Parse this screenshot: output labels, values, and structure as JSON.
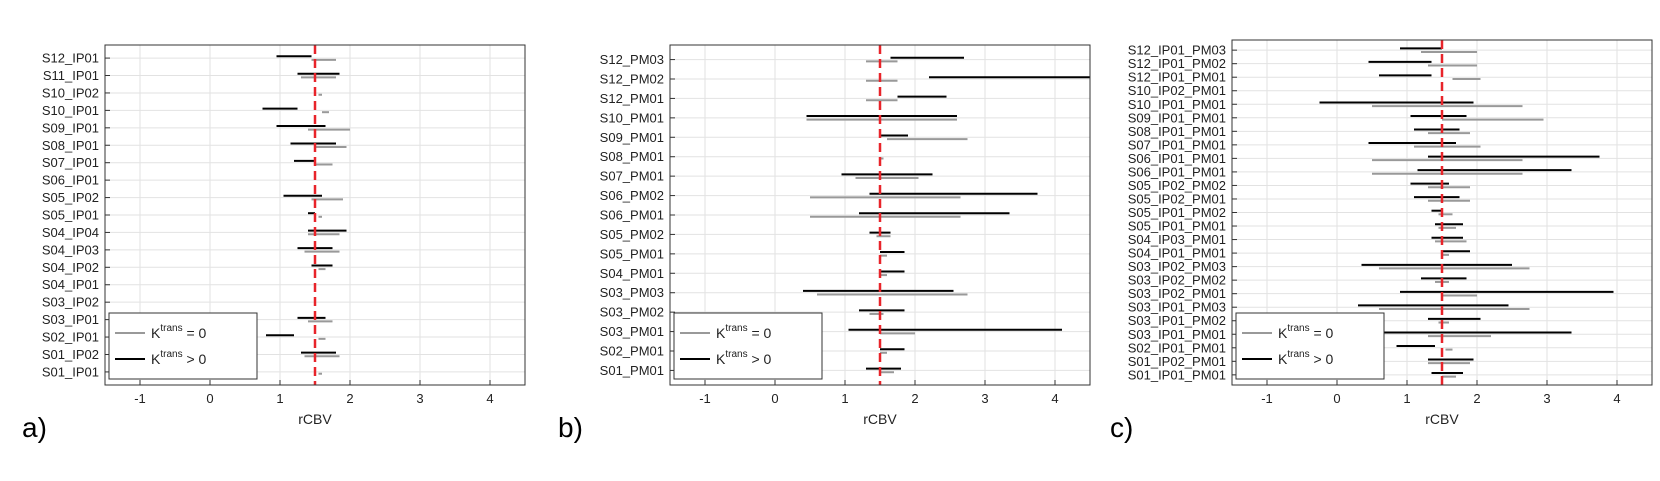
{
  "chart_data": [
    {
      "type": "interval",
      "panel_label": "a)",
      "xlabel": "rCBV",
      "xlim": [
        -1.5,
        4.5
      ],
      "xticks": [
        -1,
        0,
        1,
        2,
        3,
        4
      ],
      "reference_line_x": 1.5,
      "grid": true,
      "legend": {
        "placement": "bottom-left",
        "entries": [
          {
            "series": "ktrans_zero",
            "base": "K",
            "sup": "trans",
            "rest": " = 0",
            "color": "#999999"
          },
          {
            "series": "ktrans_pos",
            "base": "K",
            "sup": "trans",
            "rest": " > 0",
            "color": "#000000"
          }
        ]
      },
      "rows": [
        {
          "label": "S12_IP01",
          "ktrans_zero": [
            1.45,
            1.8
          ],
          "ktrans_pos": [
            0.95,
            1.45
          ]
        },
        {
          "label": "S11_IP01",
          "ktrans_zero": [
            1.3,
            1.8
          ],
          "ktrans_pos": [
            1.25,
            1.85
          ]
        },
        {
          "label": "S10_IP02",
          "ktrans_zero": [
            1.55,
            1.6
          ],
          "ktrans_pos": null
        },
        {
          "label": "S10_IP01",
          "ktrans_zero": [
            1.6,
            1.7
          ],
          "ktrans_pos": [
            0.75,
            1.25
          ]
        },
        {
          "label": "S09_IP01",
          "ktrans_zero": [
            1.4,
            2.0
          ],
          "ktrans_pos": [
            0.95,
            1.65
          ]
        },
        {
          "label": "S08_IP01",
          "ktrans_zero": [
            1.5,
            1.95
          ],
          "ktrans_pos": [
            1.15,
            1.8
          ]
        },
        {
          "label": "S07_IP01",
          "ktrans_zero": [
            1.5,
            1.75
          ],
          "ktrans_pos": [
            1.2,
            1.5
          ]
        },
        {
          "label": "S06_IP01",
          "ktrans_zero": null,
          "ktrans_pos": null
        },
        {
          "label": "S05_IP02",
          "ktrans_zero": [
            1.45,
            1.9
          ],
          "ktrans_pos": [
            1.05,
            1.6
          ]
        },
        {
          "label": "S05_IP01",
          "ktrans_zero": [
            1.55,
            1.6
          ],
          "ktrans_pos": [
            1.4,
            1.5
          ]
        },
        {
          "label": "S04_IP04",
          "ktrans_zero": [
            1.4,
            1.85
          ],
          "ktrans_pos": [
            1.4,
            1.95
          ]
        },
        {
          "label": "S04_IP03",
          "ktrans_zero": [
            1.35,
            1.85
          ],
          "ktrans_pos": [
            1.25,
            1.75
          ]
        },
        {
          "label": "S04_IP02",
          "ktrans_zero": [
            1.55,
            1.65
          ],
          "ktrans_pos": [
            1.45,
            1.75
          ]
        },
        {
          "label": "S04_IP01",
          "ktrans_zero": null,
          "ktrans_pos": null
        },
        {
          "label": "S03_IP02",
          "ktrans_zero": null,
          "ktrans_pos": null
        },
        {
          "label": "S03_IP01",
          "ktrans_zero": [
            1.4,
            1.75
          ],
          "ktrans_pos": [
            1.25,
            1.65
          ]
        },
        {
          "label": "S02_IP01",
          "ktrans_zero": [
            1.55,
            1.65
          ],
          "ktrans_pos": [
            0.8,
            1.2
          ]
        },
        {
          "label": "S01_IP02",
          "ktrans_zero": [
            1.35,
            1.85
          ],
          "ktrans_pos": [
            1.3,
            1.8
          ]
        },
        {
          "label": "S01_IP01",
          "ktrans_zero": [
            1.55,
            1.6
          ],
          "ktrans_pos": null
        }
      ]
    },
    {
      "type": "interval",
      "panel_label": "b)",
      "xlabel": "rCBV",
      "xlim": [
        -1.5,
        4.5
      ],
      "xticks": [
        -1,
        0,
        1,
        2,
        3,
        4
      ],
      "reference_line_x": 1.5,
      "grid": true,
      "legend": {
        "placement": "bottom-left",
        "entries": [
          {
            "series": "ktrans_zero",
            "base": "K",
            "sup": "trans",
            "rest": " = 0",
            "color": "#999999"
          },
          {
            "series": "ktrans_pos",
            "base": "K",
            "sup": "trans",
            "rest": " > 0",
            "color": "#000000"
          }
        ]
      },
      "rows": [
        {
          "label": "S12_PM03",
          "ktrans_zero": [
            1.3,
            1.75
          ],
          "ktrans_pos": [
            1.65,
            2.7
          ]
        },
        {
          "label": "S12_PM02",
          "ktrans_zero": [
            1.3,
            1.75
          ],
          "ktrans_pos": [
            2.2,
            4.5
          ]
        },
        {
          "label": "S12_PM01",
          "ktrans_zero": [
            1.3,
            1.75
          ],
          "ktrans_pos": [
            1.75,
            2.45
          ]
        },
        {
          "label": "S10_PM01",
          "ktrans_zero": [
            0.45,
            2.6
          ],
          "ktrans_pos": [
            0.45,
            2.6
          ]
        },
        {
          "label": "S09_PM01",
          "ktrans_zero": [
            1.6,
            2.75
          ],
          "ktrans_pos": [
            1.5,
            1.9
          ]
        },
        {
          "label": "S08_PM01",
          "ktrans_zero": [
            1.5,
            1.55
          ],
          "ktrans_pos": null
        },
        {
          "label": "S07_PM01",
          "ktrans_zero": [
            1.15,
            2.05
          ],
          "ktrans_pos": [
            0.95,
            2.25
          ]
        },
        {
          "label": "S06_PM02",
          "ktrans_zero": [
            0.5,
            2.65
          ],
          "ktrans_pos": [
            1.35,
            3.75
          ]
        },
        {
          "label": "S06_PM01",
          "ktrans_zero": [
            0.5,
            2.65
          ],
          "ktrans_pos": [
            1.2,
            3.35
          ]
        },
        {
          "label": "S05_PM02",
          "ktrans_zero": [
            1.45,
            1.65
          ],
          "ktrans_pos": [
            1.35,
            1.65
          ]
        },
        {
          "label": "S05_PM01",
          "ktrans_zero": [
            1.5,
            1.6
          ],
          "ktrans_pos": [
            1.5,
            1.85
          ]
        },
        {
          "label": "S04_PM01",
          "ktrans_zero": [
            1.5,
            1.6
          ],
          "ktrans_pos": [
            1.5,
            1.85
          ]
        },
        {
          "label": "S03_PM03",
          "ktrans_zero": [
            0.6,
            2.75
          ],
          "ktrans_pos": [
            0.4,
            2.55
          ]
        },
        {
          "label": "S03_PM02",
          "ktrans_zero": [
            1.35,
            1.55
          ],
          "ktrans_pos": [
            1.2,
            1.85
          ]
        },
        {
          "label": "S03_PM01",
          "ktrans_zero": [
            1.5,
            2.0
          ],
          "ktrans_pos": [
            1.05,
            4.1
          ]
        },
        {
          "label": "S02_PM01",
          "ktrans_zero": [
            1.5,
            1.6
          ],
          "ktrans_pos": [
            1.5,
            1.85
          ]
        },
        {
          "label": "S01_PM01",
          "ktrans_zero": [
            1.5,
            1.7
          ],
          "ktrans_pos": [
            1.3,
            1.8
          ]
        }
      ]
    },
    {
      "type": "interval",
      "panel_label": "c)",
      "xlabel": "rCBV",
      "xlim": [
        -1.5,
        4.5
      ],
      "xticks": [
        -1,
        0,
        1,
        2,
        3,
        4
      ],
      "reference_line_x": 1.5,
      "grid": true,
      "legend": {
        "placement": "bottom-left",
        "entries": [
          {
            "series": "ktrans_zero",
            "base": "K",
            "sup": "trans",
            "rest": " = 0",
            "color": "#999999"
          },
          {
            "series": "ktrans_pos",
            "base": "K",
            "sup": "trans",
            "rest": " > 0",
            "color": "#000000"
          }
        ]
      },
      "rows": [
        {
          "label": "S12_IP01_PM03",
          "ktrans_zero": [
            1.2,
            2.0
          ],
          "ktrans_pos": [
            0.9,
            1.5
          ]
        },
        {
          "label": "S12_IP01_PM02",
          "ktrans_zero": [
            1.3,
            2.0
          ],
          "ktrans_pos": [
            0.45,
            1.35
          ]
        },
        {
          "label": "S12_IP01_PM01",
          "ktrans_zero": [
            1.65,
            2.05
          ],
          "ktrans_pos": [
            0.6,
            1.35
          ]
        },
        {
          "label": "S10_IP02_PM01",
          "ktrans_zero": null,
          "ktrans_pos": null
        },
        {
          "label": "S10_IP01_PM01",
          "ktrans_zero": [
            0.5,
            2.65
          ],
          "ktrans_pos": [
            -0.25,
            1.95
          ]
        },
        {
          "label": "S09_IP01_PM01",
          "ktrans_zero": [
            1.5,
            2.95
          ],
          "ktrans_pos": [
            1.05,
            1.85
          ]
        },
        {
          "label": "S08_IP01_PM01",
          "ktrans_zero": [
            1.3,
            1.9
          ],
          "ktrans_pos": [
            1.1,
            1.75
          ]
        },
        {
          "label": "S07_IP01_PM01",
          "ktrans_zero": [
            1.1,
            2.05
          ],
          "ktrans_pos": [
            0.45,
            1.7
          ]
        },
        {
          "label": "S06_IP01_PM01",
          "ktrans_zero": [
            0.5,
            2.65
          ],
          "ktrans_pos": [
            1.3,
            3.75
          ]
        },
        {
          "label": "S06_IP01_PM01",
          "ktrans_zero": [
            0.5,
            2.65
          ],
          "ktrans_pos": [
            1.15,
            3.35
          ]
        },
        {
          "label": "S05_IP02_PM02",
          "ktrans_zero": [
            1.3,
            1.9
          ],
          "ktrans_pos": [
            1.05,
            1.6
          ]
        },
        {
          "label": "S05_IP02_PM01",
          "ktrans_zero": [
            1.3,
            1.9
          ],
          "ktrans_pos": [
            1.1,
            1.75
          ]
        },
        {
          "label": "S05_IP01_PM02",
          "ktrans_zero": [
            1.45,
            1.65
          ],
          "ktrans_pos": [
            1.35,
            1.5
          ]
        },
        {
          "label": "S05_IP01_PM01",
          "ktrans_zero": [
            1.45,
            1.7
          ],
          "ktrans_pos": [
            1.4,
            1.8
          ]
        },
        {
          "label": "S04_IP03_PM01",
          "ktrans_zero": [
            1.4,
            1.85
          ],
          "ktrans_pos": [
            1.35,
            1.8
          ]
        },
        {
          "label": "S04_IP01_PM01",
          "ktrans_zero": [
            1.5,
            1.6
          ],
          "ktrans_pos": [
            1.5,
            1.9
          ]
        },
        {
          "label": "S03_IP02_PM03",
          "ktrans_zero": [
            0.6,
            2.75
          ],
          "ktrans_pos": [
            0.35,
            2.5
          ]
        },
        {
          "label": "S03_IP02_PM02",
          "ktrans_zero": [
            1.4,
            1.6
          ],
          "ktrans_pos": [
            1.2,
            1.85
          ]
        },
        {
          "label": "S03_IP02_PM01",
          "ktrans_zero": [
            1.5,
            2.0
          ],
          "ktrans_pos": [
            0.9,
            3.95
          ]
        },
        {
          "label": "S03_IP01_PM03",
          "ktrans_zero": [
            0.6,
            2.75
          ],
          "ktrans_pos": [
            0.3,
            2.45
          ]
        },
        {
          "label": "S03_IP01_PM02",
          "ktrans_zero": [
            1.45,
            1.6
          ],
          "ktrans_pos": [
            1.3,
            2.05
          ]
        },
        {
          "label": "S03_IP01_PM01",
          "ktrans_zero": [
            1.3,
            2.2
          ],
          "ktrans_pos": [
            0.55,
            3.35
          ]
        },
        {
          "label": "S02_IP01_PM01",
          "ktrans_zero": [
            1.55,
            1.65
          ],
          "ktrans_pos": [
            0.85,
            1.4
          ]
        },
        {
          "label": "S01_IP02_PM01",
          "ktrans_zero": [
            1.3,
            1.9
          ],
          "ktrans_pos": [
            1.3,
            1.95
          ]
        },
        {
          "label": "S01_IP01_PM01",
          "ktrans_zero": [
            1.5,
            1.7
          ],
          "ktrans_pos": [
            1.35,
            1.8
          ]
        }
      ]
    }
  ]
}
